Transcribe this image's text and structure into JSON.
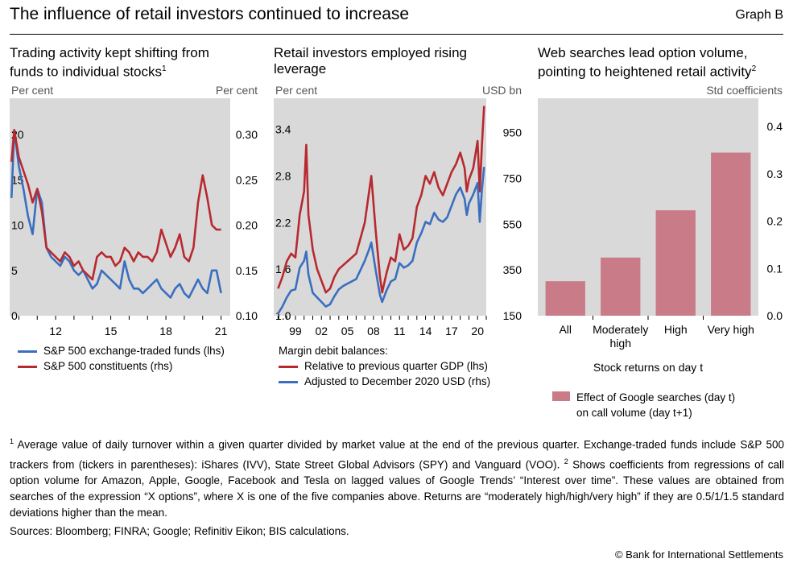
{
  "header": {
    "title": "The influence of retail investors continued to increase",
    "graph_label": "Graph B"
  },
  "panels": [
    {
      "title_line1": "Trading activity kept shifting from",
      "title_line2": "funds to individual stocks",
      "title_sup": "1",
      "lhs_unit": "Per cent",
      "rhs_unit": "Per cent",
      "legend": [
        {
          "label": "S&P 500 exchange-traded funds (lhs)",
          "color": "#3a6fbf"
        },
        {
          "label": "S&P 500 constituents (rhs)",
          "color": "#b8292f"
        }
      ]
    },
    {
      "title_line1": "Retail investors employed rising",
      "title_line2": "leverage",
      "lhs_unit": "Per cent",
      "rhs_unit": "USD bn",
      "legend_heading": "Margin debit balances:",
      "legend": [
        {
          "label": "Relative to previous quarter GDP (lhs)",
          "color": "#b8292f"
        },
        {
          "label": "Adjusted to December 2020 USD (rhs)",
          "color": "#3a6fbf"
        }
      ]
    },
    {
      "title_line1": "Web searches lead option volume,",
      "title_line2": "pointing to heightened retail activity",
      "title_sup": "2",
      "rhs_unit": "Std coefficients",
      "x_title": "Stock returns on day t",
      "legend_line1": "Effect of Google searches (day t)",
      "legend_line2": "on call volume (day t+1)",
      "bar_color": "#c97b88"
    }
  ],
  "chart_data": [
    {
      "type": "line",
      "x_ticks": [
        "12",
        "15",
        "18",
        "21"
      ],
      "x_range": [
        2009.5,
        2021.5
      ],
      "lhs_ticks": [
        "0",
        "5",
        "10",
        "15",
        "20"
      ],
      "lhs_range": [
        0,
        24
      ],
      "rhs_ticks": [
        "0.10",
        "0.15",
        "0.20",
        "0.25",
        "0.30"
      ],
      "rhs_range": [
        0.1,
        0.34
      ],
      "series": [
        {
          "name": "S&P 500 exchange-traded funds (lhs)",
          "axis": "lhs",
          "color": "#3a6fbf",
          "x": [
            2009.6,
            2009.75,
            2010.0,
            2010.25,
            2010.5,
            2010.75,
            2011.0,
            2011.25,
            2011.5,
            2011.75,
            2012.0,
            2012.25,
            2012.5,
            2012.75,
            2013.0,
            2013.25,
            2013.5,
            2013.75,
            2014.0,
            2014.25,
            2014.5,
            2014.75,
            2015.0,
            2015.25,
            2015.5,
            2015.75,
            2016.0,
            2016.25,
            2016.5,
            2016.75,
            2017.0,
            2017.25,
            2017.5,
            2017.75,
            2018.0,
            2018.25,
            2018.5,
            2018.75,
            2019.0,
            2019.25,
            2019.5,
            2019.75,
            2020.0,
            2020.25,
            2020.5,
            2020.75,
            2021.0
          ],
          "y": [
            13.0,
            20.5,
            16.5,
            14.0,
            11.0,
            9.0,
            14.0,
            12.5,
            7.5,
            6.5,
            6.0,
            5.5,
            6.5,
            6.0,
            5.0,
            4.5,
            5.0,
            4.0,
            3.0,
            3.5,
            5.0,
            4.5,
            4.0,
            3.5,
            3.0,
            6.0,
            4.0,
            3.0,
            3.0,
            2.5,
            3.0,
            3.5,
            4.0,
            3.0,
            2.5,
            2.0,
            3.0,
            3.5,
            2.5,
            2.0,
            3.0,
            4.0,
            3.0,
            2.5,
            5.0,
            5.0,
            2.5
          ]
        },
        {
          "name": "S&P 500 constituents (rhs)",
          "axis": "rhs",
          "color": "#b8292f",
          "x": [
            2009.6,
            2009.75,
            2010.0,
            2010.25,
            2010.5,
            2010.75,
            2011.0,
            2011.25,
            2011.5,
            2011.75,
            2012.0,
            2012.25,
            2012.5,
            2012.75,
            2013.0,
            2013.25,
            2013.5,
            2013.75,
            2014.0,
            2014.25,
            2014.5,
            2014.75,
            2015.0,
            2015.25,
            2015.5,
            2015.75,
            2016.0,
            2016.25,
            2016.5,
            2016.75,
            2017.0,
            2017.25,
            2017.5,
            2017.75,
            2018.0,
            2018.25,
            2018.5,
            2018.75,
            2019.0,
            2019.25,
            2019.5,
            2019.75,
            2020.0,
            2020.25,
            2020.5,
            2020.75,
            2021.0
          ],
          "y": [
            0.27,
            0.305,
            0.275,
            0.26,
            0.245,
            0.225,
            0.24,
            0.215,
            0.175,
            0.17,
            0.165,
            0.16,
            0.17,
            0.165,
            0.155,
            0.16,
            0.15,
            0.145,
            0.14,
            0.165,
            0.17,
            0.165,
            0.165,
            0.155,
            0.16,
            0.175,
            0.17,
            0.16,
            0.17,
            0.165,
            0.165,
            0.16,
            0.17,
            0.195,
            0.18,
            0.165,
            0.175,
            0.19,
            0.165,
            0.16,
            0.175,
            0.225,
            0.255,
            0.23,
            0.2,
            0.195,
            0.195
          ]
        }
      ]
    },
    {
      "type": "line",
      "x_ticks": [
        "99",
        "02",
        "05",
        "08",
        "11",
        "14",
        "17",
        "20"
      ],
      "x_range": [
        1996.5,
        2021.0
      ],
      "lhs_ticks": [
        "1.0",
        "1.6",
        "2.2",
        "2.8",
        "3.4"
      ],
      "lhs_range": [
        1.0,
        3.8
      ],
      "rhs_ticks": [
        "150",
        "350",
        "550",
        "750",
        "950"
      ],
      "rhs_range": [
        150,
        1100
      ],
      "series": [
        {
          "name": "Relative to previous quarter GDP (lhs)",
          "axis": "lhs",
          "color": "#b8292f",
          "x": [
            1997.0,
            1997.5,
            1998.0,
            1998.5,
            1999.0,
            1999.5,
            2000.0,
            2000.25,
            2000.5,
            2001.0,
            2001.5,
            2002.0,
            2002.5,
            2003.0,
            2003.5,
            2004.0,
            2004.5,
            2005.0,
            2005.5,
            2006.0,
            2006.5,
            2007.0,
            2007.5,
            2007.75,
            2008.25,
            2008.75,
            2009.0,
            2009.5,
            2010.0,
            2010.5,
            2011.0,
            2011.5,
            2012.0,
            2012.5,
            2013.0,
            2013.5,
            2014.0,
            2014.5,
            2015.0,
            2015.5,
            2016.0,
            2016.5,
            2017.0,
            2017.5,
            2018.0,
            2018.5,
            2018.75,
            2019.0,
            2019.5,
            2020.0,
            2020.25,
            2020.5,
            2020.75
          ],
          "y": [
            1.35,
            1.5,
            1.7,
            1.8,
            1.75,
            2.3,
            2.6,
            3.2,
            2.3,
            1.85,
            1.6,
            1.45,
            1.3,
            1.35,
            1.5,
            1.6,
            1.65,
            1.7,
            1.75,
            1.8,
            2.0,
            2.2,
            2.6,
            2.8,
            2.1,
            1.5,
            1.3,
            1.55,
            1.75,
            1.7,
            2.05,
            1.85,
            1.9,
            2.0,
            2.4,
            2.55,
            2.8,
            2.7,
            2.85,
            2.65,
            2.55,
            2.7,
            2.85,
            2.95,
            3.1,
            2.9,
            2.6,
            2.75,
            2.9,
            3.25,
            2.6,
            3.2,
            3.7
          ]
        },
        {
          "name": "Adjusted to December 2020 USD (rhs)",
          "axis": "rhs",
          "color": "#3a6fbf",
          "x": [
            1997.0,
            1997.5,
            1998.0,
            1998.5,
            1999.0,
            1999.5,
            2000.0,
            2000.25,
            2000.5,
            2001.0,
            2001.5,
            2002.0,
            2002.5,
            2003.0,
            2003.5,
            2004.0,
            2004.5,
            2005.0,
            2005.5,
            2006.0,
            2006.5,
            2007.0,
            2007.5,
            2007.75,
            2008.25,
            2008.75,
            2009.0,
            2009.5,
            2010.0,
            2010.5,
            2011.0,
            2011.5,
            2012.0,
            2012.5,
            2013.0,
            2013.5,
            2014.0,
            2014.5,
            2015.0,
            2015.5,
            2016.0,
            2016.5,
            2017.0,
            2017.5,
            2018.0,
            2018.5,
            2018.75,
            2019.0,
            2019.5,
            2020.0,
            2020.25,
            2020.5,
            2020.75
          ],
          "y": [
            160,
            190,
            230,
            260,
            265,
            360,
            390,
            430,
            330,
            250,
            230,
            210,
            190,
            200,
            235,
            265,
            280,
            290,
            300,
            310,
            350,
            390,
            440,
            470,
            350,
            240,
            210,
            260,
            300,
            310,
            380,
            360,
            370,
            390,
            470,
            510,
            560,
            550,
            600,
            570,
            560,
            580,
            630,
            680,
            710,
            660,
            590,
            640,
            680,
            730,
            560,
            700,
            800
          ]
        }
      ]
    },
    {
      "type": "bar",
      "categories": [
        "All",
        "Moderately high",
        "High",
        "Very high"
      ],
      "category_labels": [
        [
          "All"
        ],
        [
          "Moderately",
          "high"
        ],
        [
          "High"
        ],
        [
          "Very high"
        ]
      ],
      "values": [
        0.073,
        0.123,
        0.223,
        0.345
      ],
      "ylim": [
        0,
        0.46
      ],
      "rhs_ticks": [
        "0.0",
        "0.1",
        "0.2",
        "0.3",
        "0.4"
      ],
      "ylabel": "Std coefficients",
      "xlabel": "Stock returns on day t",
      "series_name": "Effect of Google searches (day t) on call volume (day t+1)"
    }
  ],
  "footnote": {
    "fn1_mark": "1",
    "fn1_text": " Average value of daily turnover within a given quarter divided by market value at the end of the previous quarter. Exchange-traded funds include S&P 500 trackers from (tickers in parentheses): iShares (IVV), State Street Global Advisors (SPY) and Vanguard (VOO). ",
    "fn2_mark": "2",
    "fn2_text": " Shows coefficients from regressions of call option volume for Amazon, Apple, Google, Facebook and Tesla on lagged values of Google Trends’ “Interest over time”. These values are obtained from searches of the expression “X options”, where X is one of the five companies above. Returns are “moderately high/high/very high” if they are 0.5/1/1.5 standard deviations higher than the mean."
  },
  "sources": "Sources: Bloomberg; FINRA; Google; Refinitiv Eikon; BIS calculations.",
  "copyright": "© Bank for International Settlements"
}
